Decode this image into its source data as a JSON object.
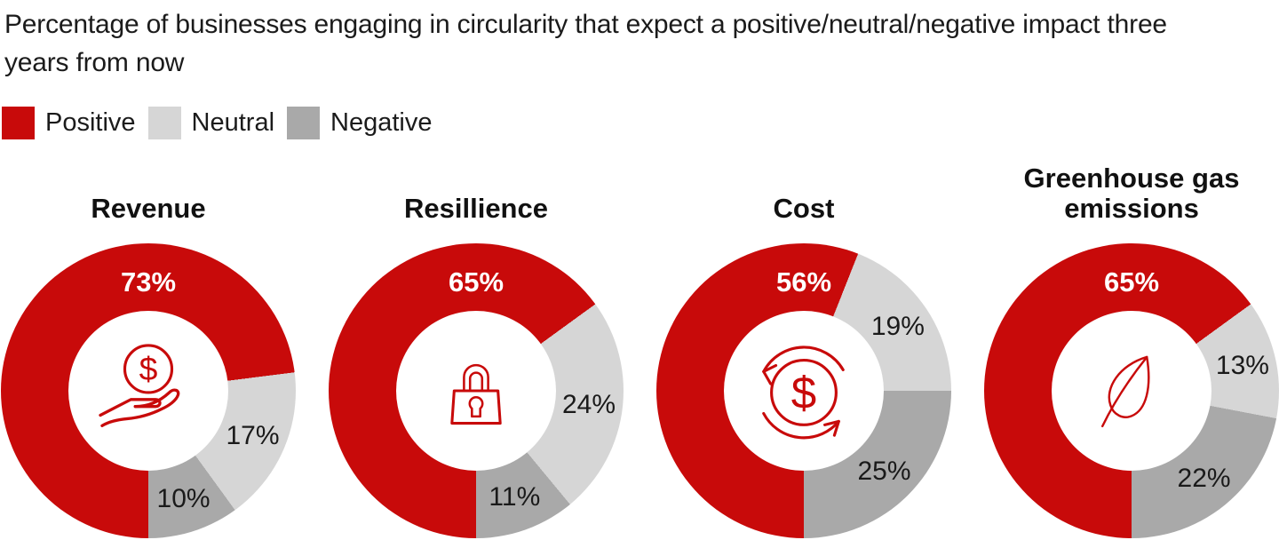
{
  "title": "Percentage of businesses engaging in circularity that expect a positive/neutral/negative impact three years from now",
  "legend": [
    {
      "label": "Positive"
    },
    {
      "label": "Neutral"
    },
    {
      "label": "Negative"
    }
  ],
  "colors": {
    "positive": "#C80A0A",
    "neutral": "#D6D6D6",
    "negative": "#A9A9A9",
    "icon_stroke": "#C80A0A",
    "label_on_gray": "#1A1A1A",
    "label_on_red": "#FFFFFF"
  },
  "chart_data": [
    {
      "type": "pie",
      "variant": "donut",
      "title": "Revenue",
      "icon": "hand-coin-icon",
      "units": "%",
      "start_angle_deg": 180,
      "direction": "clockwise",
      "segments": [
        {
          "name": "Positive",
          "value": 73,
          "label": "73%"
        },
        {
          "name": "Neutral",
          "value": 17,
          "label": "17%"
        },
        {
          "name": "Negative",
          "value": 10,
          "label": "10%"
        }
      ]
    },
    {
      "type": "pie",
      "variant": "donut",
      "title": "Resillience",
      "icon": "padlock-icon",
      "units": "%",
      "start_angle_deg": 180,
      "direction": "clockwise",
      "segments": [
        {
          "name": "Positive",
          "value": 65,
          "label": "65%"
        },
        {
          "name": "Neutral",
          "value": 24,
          "label": "24%"
        },
        {
          "name": "Negative",
          "value": 11,
          "label": "11%"
        }
      ]
    },
    {
      "type": "pie",
      "variant": "donut",
      "title": "Cost",
      "icon": "dollar-cycle-icon",
      "units": "%",
      "start_angle_deg": 180,
      "direction": "clockwise",
      "segments": [
        {
          "name": "Positive",
          "value": 56,
          "label": "56%"
        },
        {
          "name": "Neutral",
          "value": 19,
          "label": "19%"
        },
        {
          "name": "Negative",
          "value": 25,
          "label": "25%"
        }
      ]
    },
    {
      "type": "pie",
      "variant": "donut",
      "title": "Greenhouse gas emissions",
      "icon": "leaf-icon",
      "units": "%",
      "start_angle_deg": 180,
      "direction": "clockwise",
      "segments": [
        {
          "name": "Positive",
          "value": 65,
          "label": "65%"
        },
        {
          "name": "Neutral",
          "value": 13,
          "label": "13%"
        },
        {
          "name": "Negative",
          "value": 22,
          "label": "22%"
        }
      ]
    }
  ]
}
